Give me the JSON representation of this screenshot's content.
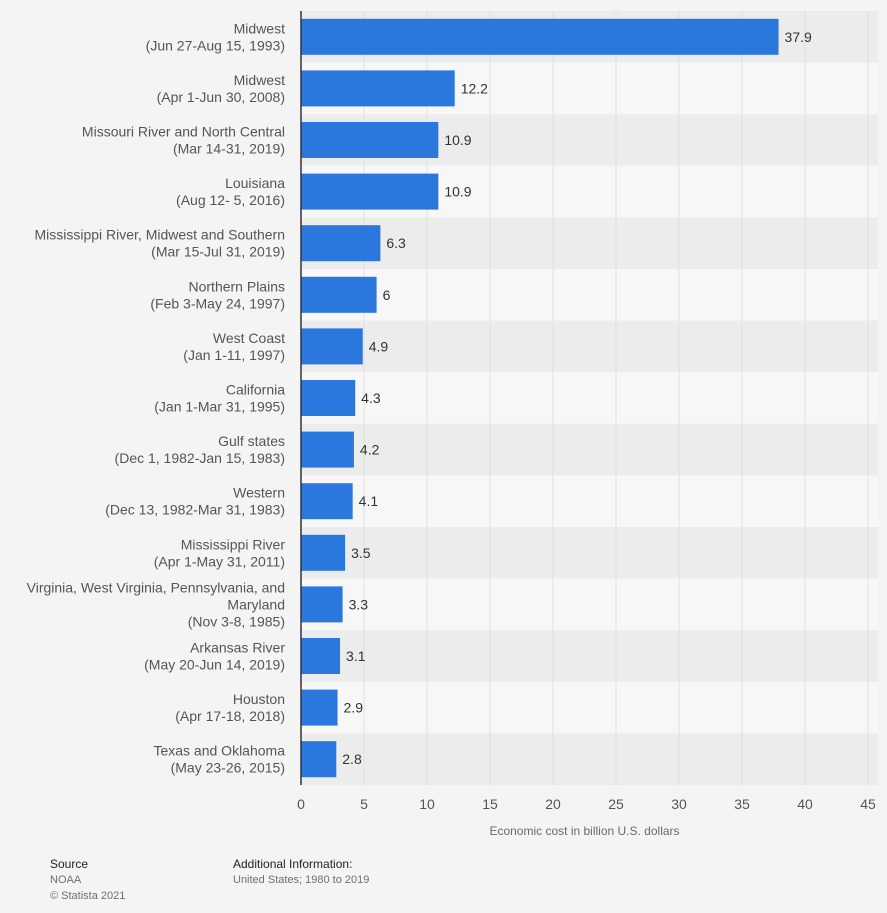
{
  "chart_data": {
    "type": "bar",
    "orientation": "horizontal",
    "categories": [
      [
        "Midwest",
        "(Jun 27-Aug 15, 1993)"
      ],
      [
        "Midwest",
        "(Apr 1-Jun 30, 2008)"
      ],
      [
        "Missouri River and North Central",
        "(Mar 14-31, 2019)"
      ],
      [
        "Louisiana",
        "(Aug 12- 5, 2016)"
      ],
      [
        "Mississippi River, Midwest and Southern",
        "(Mar 15-Jul 31, 2019)"
      ],
      [
        "Northern Plains",
        "(Feb 3-May 24, 1997)"
      ],
      [
        "West Coast",
        "(Jan 1-11, 1997)"
      ],
      [
        "California",
        "(Jan 1-Mar 31, 1995)"
      ],
      [
        "Gulf states",
        "(Dec 1, 1982-Jan 15, 1983)"
      ],
      [
        "Western",
        "(Dec 13, 1982-Mar 31, 1983)"
      ],
      [
        "Mississippi River",
        "(Apr 1-May 31, 2011)"
      ],
      [
        "Virginia, West Virginia, Pennsylvania, and",
        "Maryland",
        "(Nov 3-8, 1985)"
      ],
      [
        "Arkansas River",
        "(May 20-Jun 14, 2019)"
      ],
      [
        "Houston",
        "(Apr 17-18, 2018)"
      ],
      [
        "Texas and Oklahoma",
        "(May 23-26, 2015)"
      ]
    ],
    "values": [
      37.9,
      12.2,
      10.9,
      10.9,
      6.3,
      6,
      4.9,
      4.3,
      4.2,
      4.1,
      3.5,
      3.3,
      3.1,
      2.9,
      2.8
    ],
    "value_labels": [
      "37.9",
      "12.2",
      "10.9",
      "10.9",
      "6.3",
      "6",
      "4.9",
      "4.3",
      "4.2",
      "4.1",
      "3.5",
      "3.3",
      "3.1",
      "2.9",
      "2.8"
    ],
    "xlim": [
      0,
      45
    ],
    "xticks": [
      0,
      5,
      10,
      15,
      20,
      25,
      30,
      35,
      40,
      45
    ],
    "xlabel": "Economic cost in billion U.S. dollars",
    "ylabel": "",
    "title": "",
    "grid": true,
    "colors": {
      "bar": "#2a77dd",
      "row_band": "#ececec",
      "row_plain": "#f7f7f7",
      "gridline": "#e0e0e0",
      "axis": "#333333"
    }
  },
  "footer": {
    "source_heading": "Source",
    "source_name": "NOAA",
    "copyright": "© Statista 2021",
    "additional_heading": "Additional Information:",
    "additional_text": "United States; 1980 to 2019"
  }
}
